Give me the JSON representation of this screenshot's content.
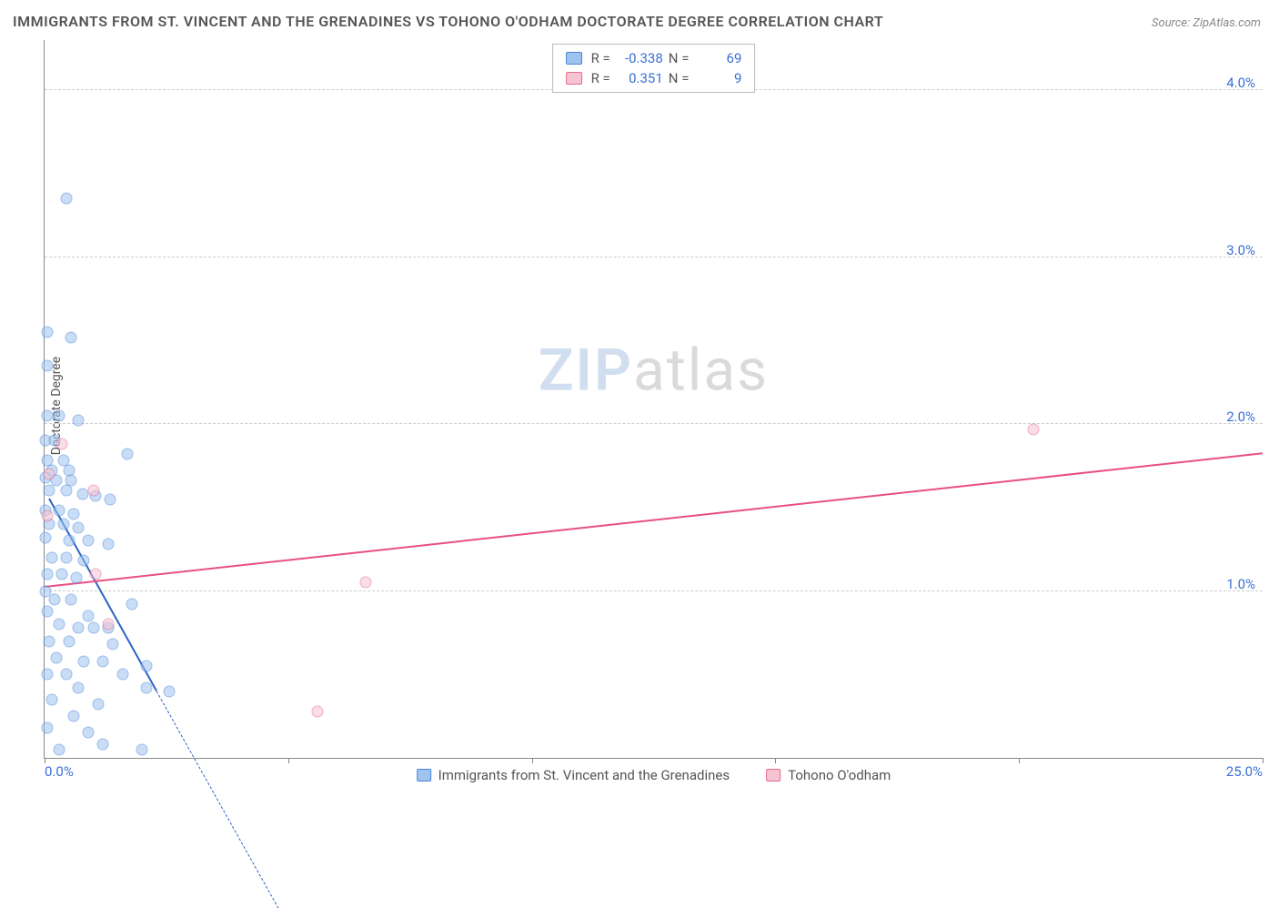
{
  "title": "IMMIGRANTS FROM ST. VINCENT AND THE GRENADINES VS TOHONO O'ODHAM DOCTORATE DEGREE CORRELATION CHART",
  "source": "Source: ZipAtlas.com",
  "ylabel": "Doctorate Degree",
  "watermark_a": "ZIP",
  "watermark_b": "atlas",
  "chart": {
    "type": "scatter",
    "background_color": "#ffffff",
    "grid_color": "#cccccc",
    "axis_color": "#888888",
    "xlim": [
      0,
      25
    ],
    "ylim": [
      0,
      4.3
    ],
    "xticks": [
      0,
      5,
      10,
      15,
      20,
      25
    ],
    "xtick_labels": [
      "0.0%",
      "",
      "",
      "",
      "",
      "25.0%"
    ],
    "yticks": [
      1.0,
      2.0,
      3.0,
      4.0
    ],
    "ytick_labels": [
      "1.0%",
      "2.0%",
      "3.0%",
      "4.0%"
    ],
    "label_color": "#3b6fd6",
    "label_fontsize": 15,
    "title_fontsize": 16,
    "title_color": "#555555",
    "marker_size": 13,
    "marker_opacity": 0.55,
    "series": [
      {
        "name": "Immigrants from St. Vincent and the Grenadines",
        "fill": "#9ec3ef",
        "stroke": "#4a86d8",
        "R": "-0.338",
        "N": "69",
        "points": [
          [
            0.45,
            3.35
          ],
          [
            0.05,
            2.55
          ],
          [
            0.55,
            2.52
          ],
          [
            0.05,
            2.35
          ],
          [
            0.05,
            2.05
          ],
          [
            0.3,
            2.05
          ],
          [
            0.7,
            2.02
          ],
          [
            0.02,
            1.9
          ],
          [
            0.2,
            1.9
          ],
          [
            1.7,
            1.82
          ],
          [
            0.05,
            1.78
          ],
          [
            0.4,
            1.78
          ],
          [
            0.15,
            1.72
          ],
          [
            0.5,
            1.72
          ],
          [
            0.02,
            1.68
          ],
          [
            0.25,
            1.66
          ],
          [
            0.55,
            1.66
          ],
          [
            0.1,
            1.6
          ],
          [
            0.45,
            1.6
          ],
          [
            0.78,
            1.58
          ],
          [
            1.05,
            1.57
          ],
          [
            1.35,
            1.55
          ],
          [
            0.02,
            1.48
          ],
          [
            0.3,
            1.48
          ],
          [
            0.6,
            1.46
          ],
          [
            0.1,
            1.4
          ],
          [
            0.4,
            1.4
          ],
          [
            0.7,
            1.38
          ],
          [
            0.02,
            1.32
          ],
          [
            0.5,
            1.3
          ],
          [
            0.9,
            1.3
          ],
          [
            1.3,
            1.28
          ],
          [
            0.15,
            1.2
          ],
          [
            0.45,
            1.2
          ],
          [
            0.8,
            1.18
          ],
          [
            0.05,
            1.1
          ],
          [
            0.35,
            1.1
          ],
          [
            0.65,
            1.08
          ],
          [
            0.02,
            1.0
          ],
          [
            0.2,
            0.95
          ],
          [
            0.55,
            0.95
          ],
          [
            1.8,
            0.92
          ],
          [
            0.05,
            0.88
          ],
          [
            0.9,
            0.85
          ],
          [
            0.3,
            0.8
          ],
          [
            0.7,
            0.78
          ],
          [
            1.0,
            0.78
          ],
          [
            1.3,
            0.78
          ],
          [
            0.1,
            0.7
          ],
          [
            0.5,
            0.7
          ],
          [
            1.4,
            0.68
          ],
          [
            0.25,
            0.6
          ],
          [
            0.8,
            0.58
          ],
          [
            1.2,
            0.58
          ],
          [
            2.1,
            0.55
          ],
          [
            0.05,
            0.5
          ],
          [
            0.45,
            0.5
          ],
          [
            1.6,
            0.5
          ],
          [
            0.7,
            0.42
          ],
          [
            2.1,
            0.42
          ],
          [
            2.55,
            0.4
          ],
          [
            0.15,
            0.35
          ],
          [
            1.1,
            0.32
          ],
          [
            0.6,
            0.25
          ],
          [
            0.05,
            0.18
          ],
          [
            0.9,
            0.15
          ],
          [
            1.2,
            0.08
          ],
          [
            0.3,
            0.05
          ],
          [
            2.0,
            0.05
          ]
        ],
        "trend": {
          "color": "#2f63c7",
          "x1": 0.1,
          "y1": 1.55,
          "x2": 2.3,
          "y2": 0.4,
          "extend_x": 4.8,
          "extend_y": -0.9
        }
      },
      {
        "name": "Tohono O'odham",
        "fill": "#f6c3d1",
        "stroke": "#e46b94",
        "R": "0.351",
        "N": "9",
        "points": [
          [
            20.3,
            1.97
          ],
          [
            0.35,
            1.88
          ],
          [
            0.1,
            1.7
          ],
          [
            1.0,
            1.6
          ],
          [
            0.05,
            1.45
          ],
          [
            1.05,
            1.1
          ],
          [
            6.6,
            1.05
          ],
          [
            1.3,
            0.8
          ],
          [
            5.6,
            0.28
          ]
        ],
        "trend": {
          "color": "#e94f82",
          "x1": 0.0,
          "y1": 1.02,
          "x2": 25.0,
          "y2": 1.82
        }
      }
    ]
  },
  "legend_top": [
    {
      "swatch_fill": "#9ec3ef",
      "swatch_stroke": "#4a86d8",
      "R_label": "R =",
      "R": "-0.338",
      "N_label": "N =",
      "N": "69"
    },
    {
      "swatch_fill": "#f6c3d1",
      "swatch_stroke": "#e46b94",
      "R_label": "R =",
      "R": "0.351",
      "N_label": "N =",
      "N": "9"
    }
  ],
  "legend_bottom": [
    {
      "swatch_fill": "#9ec3ef",
      "swatch_stroke": "#4a86d8",
      "label": "Immigrants from St. Vincent and the Grenadines"
    },
    {
      "swatch_fill": "#f6c3d1",
      "swatch_stroke": "#e46b94",
      "label": "Tohono O'odham"
    }
  ]
}
